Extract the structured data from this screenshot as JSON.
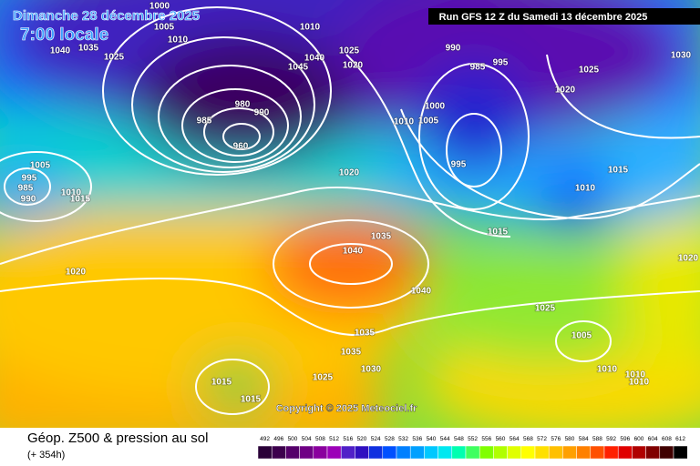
{
  "header": {
    "date": "Dimanche 28 décembre 2025",
    "time": "7:00 locale",
    "run": "Run GFS 12 Z du Samedi 13 décembre 2025"
  },
  "map": {
    "copyright": "Copyright © 2025 Meteociel.fr",
    "isobar_labels": [
      "1000",
      "1005",
      "1010",
      "1040",
      "1035",
      "1025",
      "1010",
      "1045",
      "1040",
      "1025",
      "1020",
      "990",
      "985",
      "995",
      "1025",
      "1030",
      "1020",
      "1000",
      "1005",
      "1010",
      "995",
      "985",
      "980",
      "990",
      "960",
      "1020",
      "1015",
      "1010",
      "1005",
      "995",
      "985",
      "990",
      "1010",
      "1015",
      "1015",
      "1035",
      "1040",
      "1020",
      "1040",
      "1025",
      "1005",
      "1035",
      "1035",
      "1030",
      "1025",
      "1015",
      "1015",
      "1010",
      "1010",
      "1010",
      "1020"
    ]
  },
  "footer": {
    "title": "Géop. Z500 & pression au sol",
    "lead": "(+ 354h)",
    "scale": [
      "492",
      "496",
      "500",
      "504",
      "508",
      "512",
      "516",
      "520",
      "524",
      "528",
      "532",
      "536",
      "540",
      "544",
      "548",
      "552",
      "556",
      "560",
      "564",
      "568",
      "572",
      "576",
      "580",
      "584",
      "588",
      "592",
      "596",
      "600",
      "604",
      "608",
      "612"
    ]
  }
}
